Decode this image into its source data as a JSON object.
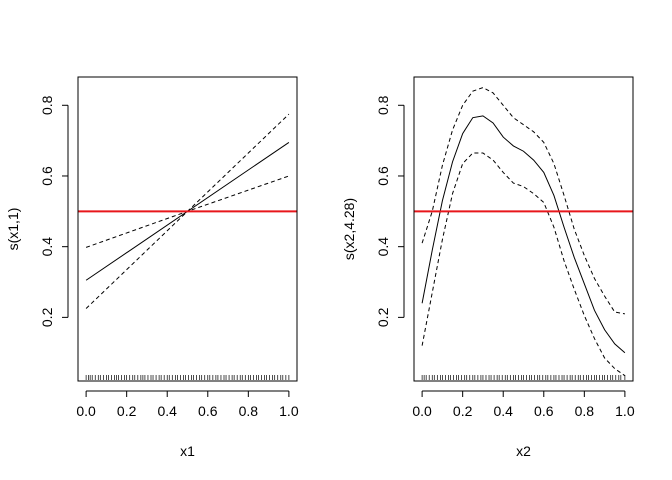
{
  "chart_data": [
    {
      "type": "line",
      "xlabel": "x1",
      "ylabel": "s(x1,1)",
      "xlim": [
        -0.04,
        1.04
      ],
      "ylim": [
        0.02,
        0.88
      ],
      "xticks": [
        0.0,
        0.2,
        0.4,
        0.6,
        0.8,
        1.0
      ],
      "xtick_labels": [
        "0.0",
        "0.2",
        "0.4",
        "0.6",
        "0.8",
        "1.0"
      ],
      "yticks": [
        0.2,
        0.4,
        0.6,
        0.8
      ],
      "ytick_labels": [
        "0.2",
        "0.4",
        "0.6",
        "0.8"
      ],
      "grid": false,
      "legend": "none",
      "hline": {
        "y": 0.5,
        "color": "#e8161b"
      },
      "series": [
        {
          "style": "solid",
          "x": [
            0.0,
            1.0
          ],
          "y": [
            0.305,
            0.695
          ]
        },
        {
          "style": "dashed",
          "x": [
            0.0,
            0.5,
            1.0
          ],
          "y": [
            0.225,
            0.5,
            0.775
          ]
        },
        {
          "style": "dashed",
          "x": [
            0.0,
            0.5,
            1.0
          ],
          "y": [
            0.398,
            0.5,
            0.6
          ]
        }
      ],
      "rug": [
        0.0,
        0.012,
        0.02,
        0.03,
        0.045,
        0.06,
        0.07,
        0.085,
        0.1,
        0.11,
        0.125,
        0.14,
        0.15,
        0.16,
        0.175,
        0.19,
        0.2,
        0.215,
        0.23,
        0.24,
        0.255,
        0.27,
        0.28,
        0.29,
        0.305,
        0.32,
        0.33,
        0.345,
        0.36,
        0.37,
        0.385,
        0.4,
        0.41,
        0.425,
        0.44,
        0.45,
        0.465,
        0.48,
        0.49,
        0.505,
        0.52,
        0.53,
        0.545,
        0.56,
        0.57,
        0.585,
        0.6,
        0.61,
        0.625,
        0.64,
        0.65,
        0.665,
        0.68,
        0.69,
        0.705,
        0.72,
        0.73,
        0.745,
        0.76,
        0.77,
        0.785,
        0.8,
        0.81,
        0.825,
        0.84,
        0.85,
        0.865,
        0.88,
        0.89,
        0.905,
        0.92,
        0.93,
        0.945,
        0.96,
        0.97,
        0.985,
        1.0
      ]
    },
    {
      "type": "line",
      "xlabel": "x2",
      "ylabel": "s(x2,4.28)",
      "xlim": [
        -0.04,
        1.04
      ],
      "ylim": [
        0.02,
        0.88
      ],
      "xticks": [
        0.0,
        0.2,
        0.4,
        0.6,
        0.8,
        1.0
      ],
      "xtick_labels": [
        "0.0",
        "0.2",
        "0.4",
        "0.6",
        "0.8",
        "1.0"
      ],
      "yticks": [
        0.2,
        0.4,
        0.6,
        0.8
      ],
      "ytick_labels": [
        "0.2",
        "0.4",
        "0.6",
        "0.8"
      ],
      "grid": false,
      "legend": "none",
      "hline": {
        "y": 0.5,
        "color": "#e8161b"
      },
      "series": [
        {
          "style": "solid",
          "x": [
            0.0,
            0.05,
            0.1,
            0.15,
            0.2,
            0.25,
            0.3,
            0.35,
            0.4,
            0.45,
            0.5,
            0.55,
            0.6,
            0.65,
            0.7,
            0.75,
            0.8,
            0.85,
            0.9,
            0.95,
            1.0
          ],
          "y": [
            0.24,
            0.39,
            0.53,
            0.64,
            0.72,
            0.765,
            0.77,
            0.75,
            0.71,
            0.685,
            0.67,
            0.645,
            0.61,
            0.545,
            0.455,
            0.37,
            0.295,
            0.22,
            0.165,
            0.125,
            0.1
          ]
        },
        {
          "style": "dashed",
          "x": [
            0.0,
            0.05,
            0.1,
            0.15,
            0.2,
            0.25,
            0.3,
            0.35,
            0.4,
            0.45,
            0.5,
            0.55,
            0.6,
            0.65,
            0.7,
            0.75,
            0.8,
            0.85,
            0.9,
            0.95,
            1.0
          ],
          "y": [
            0.41,
            0.5,
            0.63,
            0.73,
            0.8,
            0.84,
            0.85,
            0.835,
            0.8,
            0.765,
            0.745,
            0.725,
            0.695,
            0.635,
            0.545,
            0.45,
            0.375,
            0.31,
            0.26,
            0.215,
            0.21
          ]
        },
        {
          "style": "dashed",
          "x": [
            0.0,
            0.05,
            0.1,
            0.15,
            0.2,
            0.25,
            0.3,
            0.35,
            0.4,
            0.45,
            0.5,
            0.55,
            0.6,
            0.65,
            0.7,
            0.75,
            0.8,
            0.85,
            0.9,
            0.95,
            1.0
          ],
          "y": [
            0.12,
            0.27,
            0.42,
            0.55,
            0.635,
            0.665,
            0.665,
            0.645,
            0.61,
            0.58,
            0.57,
            0.55,
            0.525,
            0.455,
            0.36,
            0.28,
            0.205,
            0.14,
            0.085,
            0.055,
            0.035
          ]
        }
      ],
      "rug": [
        0.0,
        0.01,
        0.02,
        0.035,
        0.05,
        0.06,
        0.075,
        0.09,
        0.1,
        0.115,
        0.13,
        0.14,
        0.155,
        0.17,
        0.18,
        0.195,
        0.21,
        0.22,
        0.235,
        0.25,
        0.26,
        0.275,
        0.29,
        0.3,
        0.315,
        0.33,
        0.34,
        0.355,
        0.37,
        0.38,
        0.395,
        0.41,
        0.42,
        0.435,
        0.45,
        0.46,
        0.475,
        0.49,
        0.5,
        0.515,
        0.53,
        0.54,
        0.555,
        0.57,
        0.58,
        0.595,
        0.61,
        0.62,
        0.635,
        0.65,
        0.66,
        0.675,
        0.69,
        0.7,
        0.715,
        0.73,
        0.74,
        0.755,
        0.77,
        0.78,
        0.795,
        0.81,
        0.82,
        0.835,
        0.85,
        0.86,
        0.875,
        0.89,
        0.9,
        0.915,
        0.93,
        0.94,
        0.955,
        0.97,
        0.98,
        1.0
      ]
    }
  ]
}
